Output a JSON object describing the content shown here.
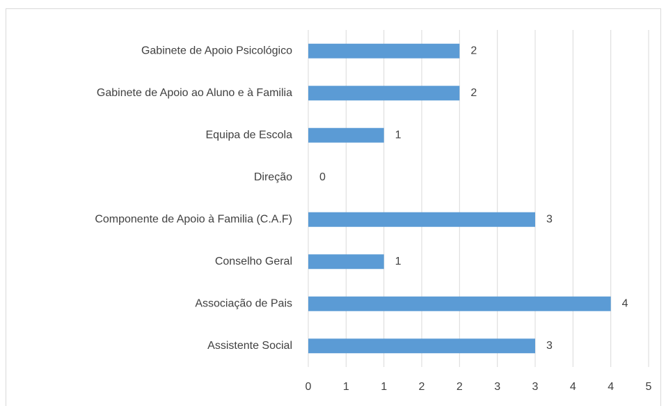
{
  "chart_data": {
    "type": "bar",
    "orientation": "horizontal",
    "categories": [
      "Gabinete de Apoio Psicológico",
      "Gabinete de Apoio ao Aluno e à Familia",
      "Equipa de Escola",
      "Direção",
      "Componente de Apoio à Familia (C.A.F)",
      "Conselho Geral",
      "Associação de Pais",
      "Assistente Social"
    ],
    "values": [
      2,
      2,
      1,
      0,
      3,
      1,
      4,
      3
    ],
    "color": "#5b9bd5",
    "xlim": [
      0,
      4.5
    ],
    "xticks": [
      0,
      {
        "value": 0.5,
        "label": "1"
      },
      1,
      {
        "value": 1.5,
        "label": "2"
      },
      2,
      {
        "value": 2.5,
        "label": "3"
      },
      3,
      {
        "value": 3.5,
        "label": "4"
      },
      4,
      {
        "value": 4.5,
        "label": "5"
      }
    ],
    "grid": true
  }
}
